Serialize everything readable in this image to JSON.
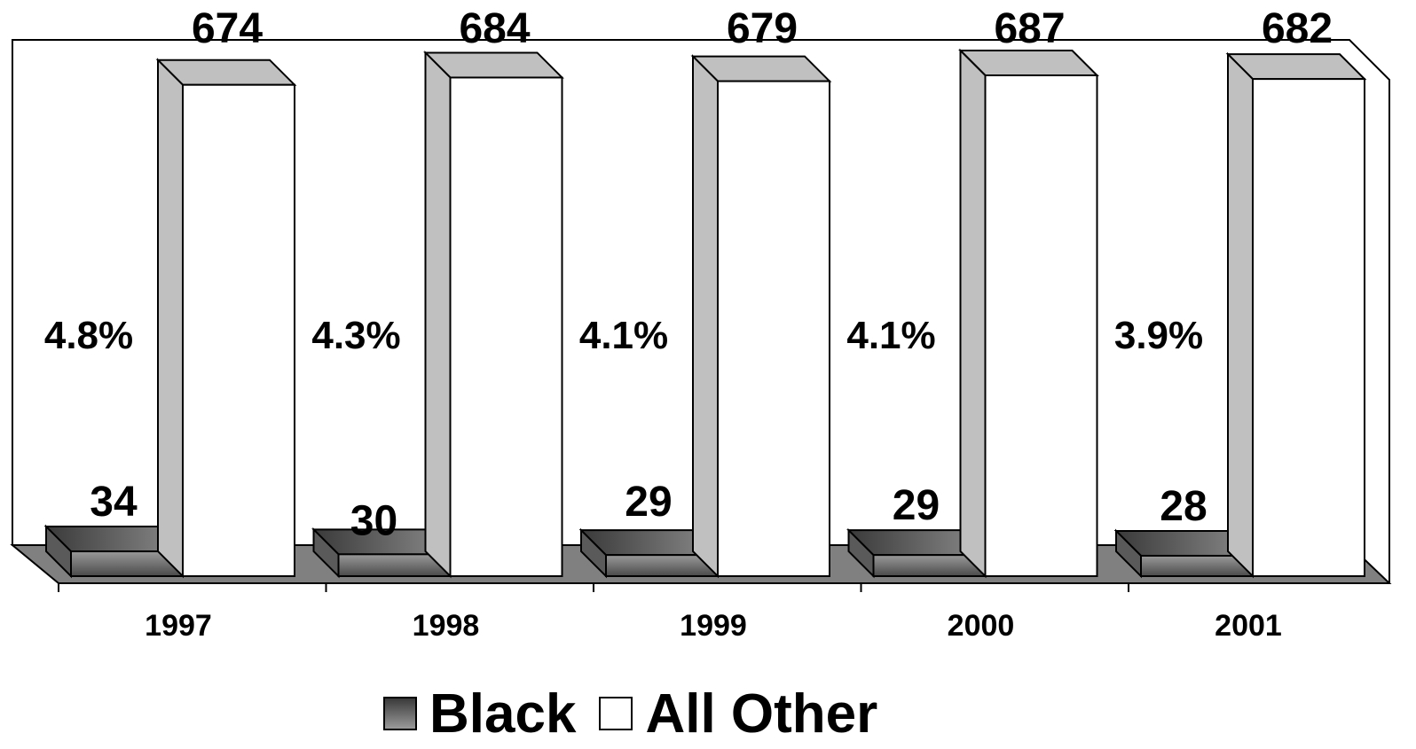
{
  "chart_data": {
    "type": "bar",
    "style": "3d-clustered-column",
    "categories": [
      "1997",
      "1998",
      "1999",
      "2000",
      "2001"
    ],
    "series": [
      {
        "name": "Black",
        "values": [
          34,
          30,
          29,
          29,
          28
        ],
        "color": "#777777"
      },
      {
        "name": "All Other",
        "values": [
          674,
          684,
          679,
          687,
          682
        ],
        "color": "#ffffff"
      }
    ],
    "series_labels": [
      [
        "34",
        "30",
        "29",
        "29",
        "28"
      ],
      [
        "674",
        "684",
        "679",
        "687",
        "682"
      ]
    ],
    "annotations": [
      "4.8%",
      "4.3%",
      "4.1%",
      "4.1%",
      "3.9%"
    ],
    "title": "",
    "xlabel": "",
    "ylabel": "",
    "ylim": [
      0,
      700
    ],
    "grid": false,
    "legend_position": "bottom",
    "colors": {
      "wall": "#ffffff",
      "floor": "#808080",
      "bar_side": "#c0c0c0",
      "outline": "#000000"
    }
  }
}
